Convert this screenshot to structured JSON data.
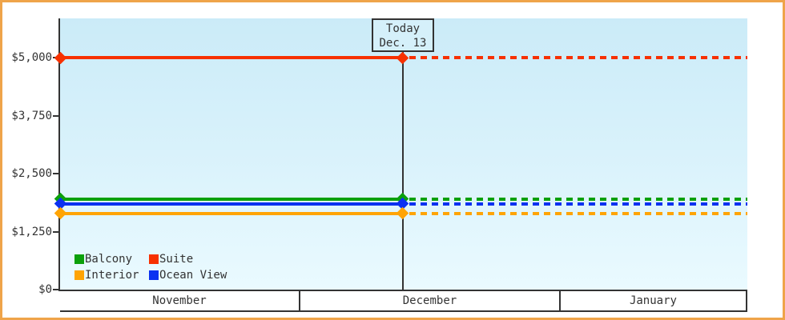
{
  "frame": {
    "border_color": "#EFA44A",
    "background": "#FFFFFF"
  },
  "colors": {
    "axis": "#333333",
    "text": "#333333",
    "plot_bg_top": "#CBEBF8",
    "plot_bg_bottom": "#EAFAFF",
    "today_box_fill": "#D5F0FA"
  },
  "chart_data": {
    "type": "line",
    "title": "",
    "y_axis": {
      "tick_labels": [
        "$5,000",
        "$3,750",
        "$2,500",
        "$1,250",
        "$0"
      ],
      "tick_values": [
        5000,
        3750,
        2500,
        1250,
        0
      ],
      "ylim": [
        0,
        5845
      ],
      "grid": false
    },
    "x_axis": {
      "categories": [
        "November",
        "December",
        "January"
      ],
      "section_fractions": [
        0.3473,
        0.3788,
        0.2739
      ]
    },
    "today": {
      "label_line1": "Today",
      "label_line2": "Dec. 13",
      "x_fraction": 0.4988
    },
    "series": [
      {
        "name": "Suite",
        "color": "#F73100",
        "value": 5000
      },
      {
        "name": "Balcony",
        "color": "#0BA00B",
        "value": 1950
      },
      {
        "name": "Ocean View",
        "color": "#0B31F1",
        "value": 1850
      },
      {
        "name": "Interior",
        "color": "#FFA404",
        "value": 1640
      }
    ],
    "line_style": "solid with diamond markers up to today, dashed projection after today",
    "legend": {
      "position": "bottom-left-inside",
      "items": [
        {
          "label": "Balcony",
          "color": "#0BA00B"
        },
        {
          "label": "Suite",
          "color": "#F73100"
        },
        {
          "label": "Interior",
          "color": "#FFA404"
        },
        {
          "label": "Ocean View",
          "color": "#0B31F1"
        }
      ]
    }
  }
}
